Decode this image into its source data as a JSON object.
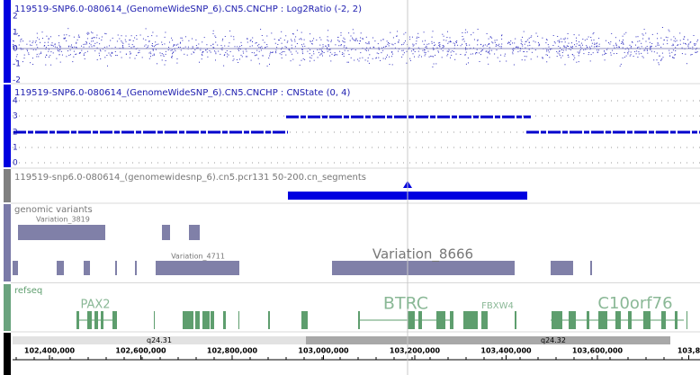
{
  "tracks": [
    {
      "title": "119519-SNP6.0-080614_(GenomeWideSNP_6).CN5.CNCHP : Log2Ratio (-2, 2)",
      "ticks": [
        "2",
        "1",
        "0",
        "-1",
        "-2"
      ]
    },
    {
      "title": "119519-SNP6.0-080614_(GenomeWideSNP_6).CN5.CNCHP : CNState (0, 4)",
      "ticks": [
        "4",
        "3",
        "2",
        "1",
        "0"
      ]
    },
    {
      "title": "119519-snp6.0-080614_(genomewidesnp_6).cn5.pcr131 50-200.cn_segments"
    }
  ],
  "variants": {
    "label": "genomic variants",
    "names": [
      "Variation_3819",
      "Variation_4711",
      "Variation_8666"
    ]
  },
  "refseq": {
    "label": "refseq",
    "genes": [
      "PAX2",
      "BTRC",
      "FBXW4",
      "C10orf76"
    ]
  },
  "ruler": {
    "bands": [
      "q24.31",
      "q24.32"
    ],
    "positions": [
      "102,400,000",
      "102,600,000",
      "102,800,000",
      "103,000,000",
      "103,200,000",
      "103,400,000",
      "103,600,000",
      "103,8"
    ]
  }
}
